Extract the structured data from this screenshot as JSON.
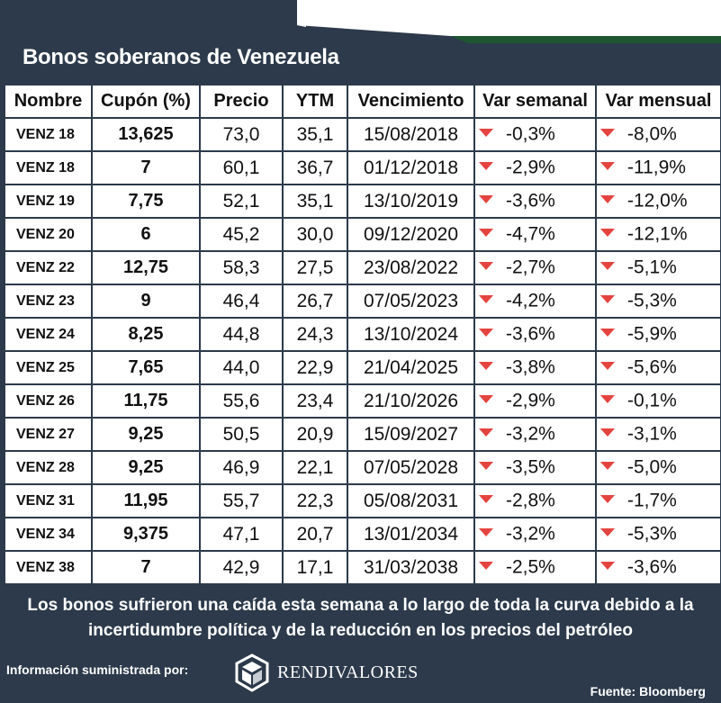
{
  "chart_data": {
    "type": "table",
    "title": "Bonos soberanos de Venezuela",
    "columns": [
      "Nombre",
      "Cupón (%)",
      "Precio",
      "YTM",
      "Vencimiento",
      "Var semanal",
      "Var mensual"
    ],
    "rows": [
      {
        "nombre": "VENZ 18",
        "cupon": "13,625",
        "precio": "73,0",
        "ytm": "35,1",
        "vencimiento": "15/08/2018",
        "var_semanal": "-0,3%",
        "var_mensual": "-8,0%"
      },
      {
        "nombre": "VENZ 18",
        "cupon": "7",
        "precio": "60,1",
        "ytm": "36,7",
        "vencimiento": "01/12/2018",
        "var_semanal": "-2,9%",
        "var_mensual": "-11,9%"
      },
      {
        "nombre": "VENZ 19",
        "cupon": "7,75",
        "precio": "52,1",
        "ytm": "35,1",
        "vencimiento": "13/10/2019",
        "var_semanal": "-3,6%",
        "var_mensual": "-12,0%"
      },
      {
        "nombre": "VENZ 20",
        "cupon": "6",
        "precio": "45,2",
        "ytm": "30,0",
        "vencimiento": "09/12/2020",
        "var_semanal": "-4,7%",
        "var_mensual": "-12,1%"
      },
      {
        "nombre": "VENZ 22",
        "cupon": "12,75",
        "precio": "58,3",
        "ytm": "27,5",
        "vencimiento": "23/08/2022",
        "var_semanal": "-2,7%",
        "var_mensual": "-5,1%"
      },
      {
        "nombre": "VENZ 23",
        "cupon": "9",
        "precio": "46,4",
        "ytm": "26,7",
        "vencimiento": "07/05/2023",
        "var_semanal": "-4,2%",
        "var_mensual": "-5,3%"
      },
      {
        "nombre": "VENZ 24",
        "cupon": "8,25",
        "precio": "44,8",
        "ytm": "24,3",
        "vencimiento": "13/10/2024",
        "var_semanal": "-3,6%",
        "var_mensual": "-5,9%"
      },
      {
        "nombre": "VENZ 25",
        "cupon": "7,65",
        "precio": "44,0",
        "ytm": "22,9",
        "vencimiento": "21/04/2025",
        "var_semanal": "-3,8%",
        "var_mensual": "-5,6%"
      },
      {
        "nombre": "VENZ 26",
        "cupon": "11,75",
        "precio": "55,6",
        "ytm": "23,4",
        "vencimiento": "21/10/2026",
        "var_semanal": "-2,9%",
        "var_mensual": "-0,1%"
      },
      {
        "nombre": "VENZ 27",
        "cupon": "9,25",
        "precio": "50,5",
        "ytm": "20,9",
        "vencimiento": "15/09/2027",
        "var_semanal": "-3,2%",
        "var_mensual": "-3,1%"
      },
      {
        "nombre": "VENZ 28",
        "cupon": "9,25",
        "precio": "46,9",
        "ytm": "22,1",
        "vencimiento": "07/05/2028",
        "var_semanal": "-3,5%",
        "var_mensual": "-5,0%"
      },
      {
        "nombre": "VENZ 31",
        "cupon": "11,95",
        "precio": "55,7",
        "ytm": "22,3",
        "vencimiento": "05/08/2031",
        "var_semanal": "-2,8%",
        "var_mensual": "-1,7%"
      },
      {
        "nombre": "VENZ 34",
        "cupon": "9,375",
        "precio": "47,1",
        "ytm": "20,7",
        "vencimiento": "13/01/2034",
        "var_semanal": "-3,2%",
        "var_mensual": "-5,3%"
      },
      {
        "nombre": "VENZ 38",
        "cupon": "7",
        "precio": "42,9",
        "ytm": "17,1",
        "vencimiento": "31/03/2038",
        "var_semanal": "-2,5%",
        "var_mensual": "-3,6%"
      }
    ],
    "indicator_icon": "red-down-triangle-icon"
  },
  "summary": "Los bonos sufrieron una caída esta semana a lo largo de toda la curva debido a la incertidumbre política y de la reducción en los precios del petróleo",
  "footer": {
    "provided_by": "Información suministrada por:",
    "logo_text": "RENDIVALORES",
    "logo_icon": "cube-logo-icon",
    "source": "Fuente: Bloomberg"
  },
  "colors": {
    "background": "#2c3a4b",
    "table_bg": "#ffffff",
    "negative": "#e4443f",
    "accent_green": "#1e5631"
  }
}
